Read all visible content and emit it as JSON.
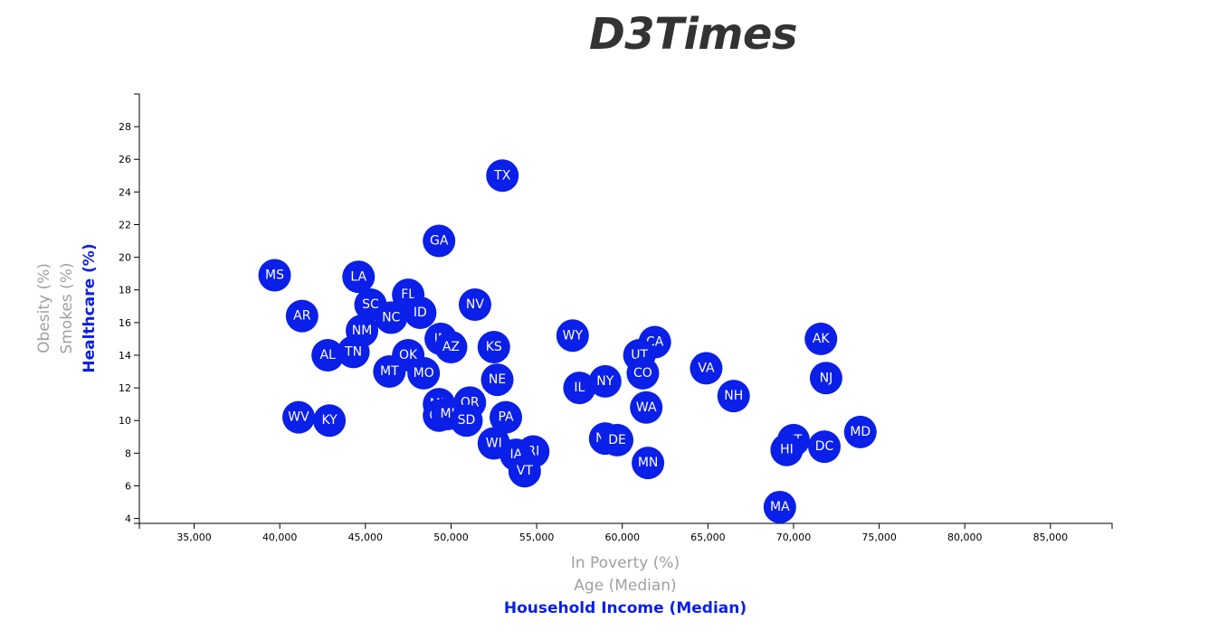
{
  "page": {
    "title": "D3Times"
  },
  "colors": {
    "accent": "#0a1fe8",
    "inactive_label": "#a0a0a0",
    "circle_text": "#ffffff"
  },
  "axes": {
    "x_labels": [
      {
        "text": "In Poverty (%)",
        "active": false
      },
      {
        "text": "Age (Median)",
        "active": false
      },
      {
        "text": "Household Income (Median)",
        "active": true
      }
    ],
    "y_labels": [
      {
        "text": "Obesity (%)",
        "active": false
      },
      {
        "text": "Smokes (%)",
        "active": false
      },
      {
        "text": "Healthcare (%)",
        "active": true
      }
    ]
  },
  "chart_data": {
    "type": "scatter",
    "xlabel": "Household Income (Median)",
    "ylabel": "Healthcare (%)",
    "xlim": [
      31800,
      88600
    ],
    "ylim": [
      3.7,
      30.0
    ],
    "xticks": [
      35000,
      40000,
      45000,
      50000,
      55000,
      60000,
      65000,
      70000,
      75000,
      80000,
      85000
    ],
    "yticks": [
      4,
      6,
      8,
      10,
      12,
      14,
      16,
      18,
      20,
      22,
      24,
      26,
      28
    ],
    "grid": false,
    "points": [
      {
        "label": "TX",
        "x": 53000,
        "y": 25.0
      },
      {
        "label": "GA",
        "x": 49300,
        "y": 21.0
      },
      {
        "label": "MS",
        "x": 39700,
        "y": 18.9
      },
      {
        "label": "LA",
        "x": 44600,
        "y": 18.8
      },
      {
        "label": "FL",
        "x": 47500,
        "y": 17.7
      },
      {
        "label": "SC",
        "x": 45300,
        "y": 17.1
      },
      {
        "label": "NV",
        "x": 51400,
        "y": 17.1
      },
      {
        "label": "ID",
        "x": 48200,
        "y": 16.6
      },
      {
        "label": "AR",
        "x": 41300,
        "y": 16.4
      },
      {
        "label": "NC",
        "x": 46500,
        "y": 16.3
      },
      {
        "label": "NM",
        "x": 44800,
        "y": 15.5
      },
      {
        "label": "WY",
        "x": 57100,
        "y": 15.2
      },
      {
        "label": "AK",
        "x": 71600,
        "y": 15.0
      },
      {
        "label": "IN",
        "x": 49400,
        "y": 15.0
      },
      {
        "label": "CA",
        "x": 61900,
        "y": 14.8
      },
      {
        "label": "AZ",
        "x": 50000,
        "y": 14.5
      },
      {
        "label": "KS",
        "x": 52500,
        "y": 14.5
      },
      {
        "label": "TN",
        "x": 44300,
        "y": 14.2
      },
      {
        "label": "AL",
        "x": 42800,
        "y": 14.0
      },
      {
        "label": "OK",
        "x": 47500,
        "y": 14.0
      },
      {
        "label": "UT",
        "x": 61000,
        "y": 14.0
      },
      {
        "label": "VA",
        "x": 64900,
        "y": 13.2
      },
      {
        "label": "MT",
        "x": 46400,
        "y": 13.0
      },
      {
        "label": "MO",
        "x": 48400,
        "y": 12.9
      },
      {
        "label": "CO",
        "x": 61200,
        "y": 12.9
      },
      {
        "label": "NJ",
        "x": 71900,
        "y": 12.6
      },
      {
        "label": "NE",
        "x": 52700,
        "y": 12.5
      },
      {
        "label": "NY",
        "x": 59000,
        "y": 12.4
      },
      {
        "label": "IL",
        "x": 57500,
        "y": 12.0
      },
      {
        "label": "NH",
        "x": 66500,
        "y": 11.5
      },
      {
        "label": "OR",
        "x": 51100,
        "y": 11.1
      },
      {
        "label": "ME",
        "x": 49300,
        "y": 11.0
      },
      {
        "label": "WA",
        "x": 61400,
        "y": 10.8
      },
      {
        "label": "OH",
        "x": 49300,
        "y": 10.3
      },
      {
        "label": "MI",
        "x": 49800,
        "y": 10.4
      },
      {
        "label": "WV",
        "x": 41100,
        "y": 10.2
      },
      {
        "label": "PA",
        "x": 53200,
        "y": 10.2
      },
      {
        "label": "KY",
        "x": 42900,
        "y": 10.0
      },
      {
        "label": "SD",
        "x": 50900,
        "y": 10.0
      },
      {
        "label": "MD",
        "x": 73900,
        "y": 9.3
      },
      {
        "label": "ND",
        "x": 59000,
        "y": 8.9
      },
      {
        "label": "DE",
        "x": 59700,
        "y": 8.8
      },
      {
        "label": "CT",
        "x": 70000,
        "y": 8.8
      },
      {
        "label": "WI",
        "x": 52500,
        "y": 8.6
      },
      {
        "label": "DC",
        "x": 71800,
        "y": 8.4
      },
      {
        "label": "HI",
        "x": 69600,
        "y": 8.2
      },
      {
        "label": "RI",
        "x": 54800,
        "y": 8.1
      },
      {
        "label": "IA",
        "x": 53800,
        "y": 7.9
      },
      {
        "label": "MN",
        "x": 61500,
        "y": 7.4
      },
      {
        "label": "VT",
        "x": 54300,
        "y": 6.9
      },
      {
        "label": "MA",
        "x": 69200,
        "y": 4.7
      }
    ]
  }
}
